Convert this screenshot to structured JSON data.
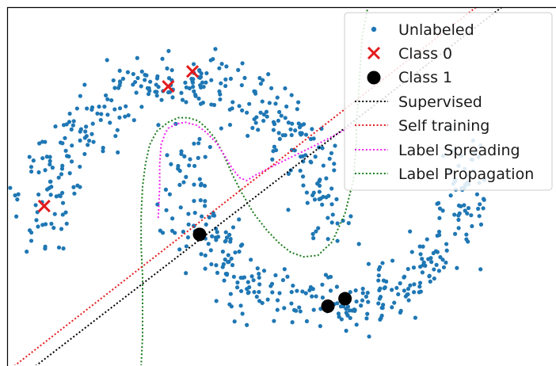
{
  "chart_data": {
    "type": "scatter",
    "title": "",
    "xlabel": "",
    "ylabel": "",
    "xlim": [
      -1.25,
      2.6
    ],
    "ylim": [
      -0.9,
      1.5
    ],
    "grid": false,
    "axes_visible": false,
    "legend_position": "top-right",
    "colors": {
      "unlabeled": "#1f77b4",
      "class0": "#e31a1c",
      "class1": "#000000",
      "supervised": "#000000",
      "self_training": "#e41a1c",
      "label_spreading": "#ee22ee",
      "label_propagation": "#1a7a1a"
    },
    "series": [
      {
        "name": "Unlabeled",
        "kind": "scatter",
        "distribution": "two interleaving half moons (make_moons, noise ~0.1)",
        "n_points": 700,
        "moon_upper": {
          "center": [
            0,
            0
          ],
          "radius": 1,
          "theta_range_deg": [
            0,
            180
          ]
        },
        "moon_lower": {
          "center": [
            1,
            0.5
          ],
          "radius": 1,
          "theta_range_deg": [
            180,
            360
          ]
        },
        "noise_sd": 0.1
      },
      {
        "name": "Class 0",
        "kind": "scatter",
        "marker": "x",
        "points": [
          [
            -0.12,
            0.97
          ],
          [
            0.05,
            1.07
          ],
          [
            -0.99,
            0.17
          ]
        ]
      },
      {
        "name": "Class 1",
        "kind": "scatter",
        "marker": "o",
        "points": [
          [
            0.1,
            -0.02
          ],
          [
            1.0,
            -0.5
          ],
          [
            1.12,
            -0.45
          ]
        ]
      },
      {
        "name": "Supervised",
        "kind": "line",
        "style": "dotted",
        "x": [
          -1.05,
          2.22
        ],
        "y": [
          -0.9,
          1.5
        ]
      },
      {
        "name": "Self training",
        "kind": "line",
        "style": "dotted",
        "x": [
          -1.2,
          2.04
        ],
        "y": [
          -0.9,
          1.5
        ]
      },
      {
        "name": "Label Spreading",
        "kind": "line",
        "style": "dotted",
        "x": [
          -0.19,
          -0.18,
          -0.18,
          -0.17,
          -0.14,
          -0.12,
          -0.06,
          0.0,
          0.08,
          0.15,
          0.22,
          0.28,
          0.33,
          0.38,
          0.43,
          0.48,
          0.6,
          0.75,
          0.9,
          1.0,
          1.1,
          1.18
        ],
        "y": [
          0.09,
          0.3,
          0.45,
          0.58,
          0.66,
          0.69,
          0.72,
          0.73,
          0.71,
          0.66,
          0.59,
          0.5,
          0.42,
          0.36,
          0.34,
          0.37,
          0.43,
          0.5,
          0.57,
          0.62,
          0.67,
          0.71
        ]
      },
      {
        "name": "Label Propagation",
        "kind": "line",
        "style": "dotted",
        "x": [
          -0.31,
          -0.3,
          -0.3,
          -0.3,
          -0.31,
          -0.31,
          -0.3,
          -0.28,
          -0.25,
          -0.2,
          -0.12,
          -0.05,
          0.02,
          0.09,
          0.15,
          0.21,
          0.27,
          0.33,
          0.4,
          0.48,
          0.57,
          0.66,
          0.74,
          0.83,
          0.93,
          1.03,
          1.12,
          1.18,
          1.2,
          1.2,
          1.21,
          1.22,
          1.23,
          1.24,
          1.26,
          1.28
        ],
        "y": [
          -0.9,
          -0.7,
          -0.5,
          -0.3,
          -0.1,
          0.1,
          0.3,
          0.45,
          0.58,
          0.67,
          0.73,
          0.76,
          0.76,
          0.74,
          0.69,
          0.62,
          0.51,
          0.38,
          0.25,
          0.12,
          0.01,
          -0.08,
          -0.14,
          -0.17,
          -0.16,
          -0.07,
          0.12,
          0.35,
          0.6,
          0.72,
          0.85,
          1.0,
          1.15,
          1.3,
          1.4,
          1.5
        ]
      }
    ],
    "legend": [
      {
        "label": "Unlabeled",
        "marker": "dot",
        "color": "#1f77b4"
      },
      {
        "label": "Class 0",
        "marker": "x",
        "color": "#e31a1c"
      },
      {
        "label": "Class 1",
        "marker": "circle",
        "color": "#000000"
      },
      {
        "label": "Supervised",
        "marker": "dotted-line",
        "color": "#000000"
      },
      {
        "label": "Self training",
        "marker": "dotted-line",
        "color": "#e41a1c"
      },
      {
        "label": "Label Spreading",
        "marker": "dotted-line",
        "color": "#ee22ee"
      },
      {
        "label": "Label Propagation",
        "marker": "dotted-line",
        "color": "#1a7a1a"
      }
    ]
  }
}
